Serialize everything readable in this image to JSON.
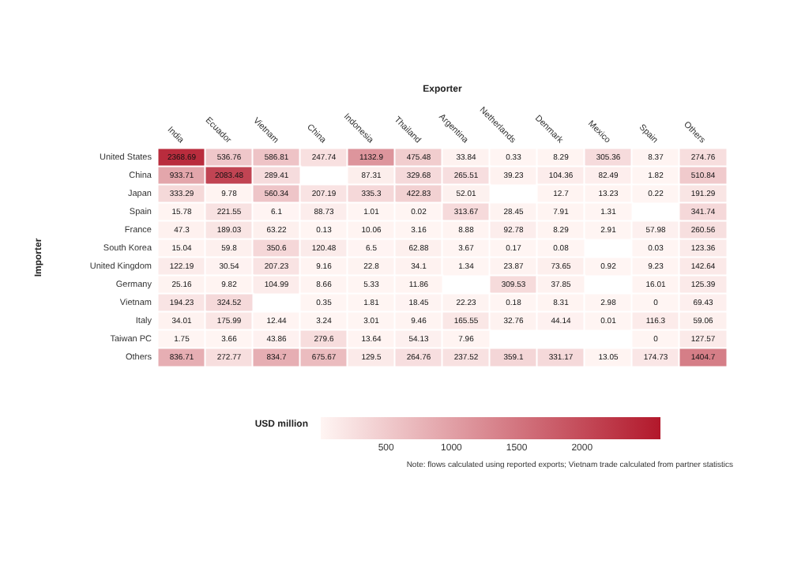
{
  "chart_data": {
    "type": "heatmap",
    "xlabel": "Exporter",
    "ylabel": "Importer",
    "clabel": "USD million",
    "categories": [
      "India",
      "Ecuador",
      "Vietnam",
      "China",
      "Indonesia",
      "Thailand",
      "Argentina",
      "Netherlands",
      "Denmark",
      "Mexico",
      "Spain",
      "Others"
    ],
    "y_categories": [
      "United States",
      "China",
      "Japan",
      "Spain",
      "France",
      "South Korea",
      "United Kingdom",
      "Germany",
      "Vietnam",
      "Italy",
      "Taiwan PC",
      "Others"
    ],
    "cells": [
      [
        2368.69,
        536.76,
        586.81,
        247.74,
        1132.9,
        475.48,
        33.84,
        0.33,
        8.29,
        305.36,
        8.37,
        274.76
      ],
      [
        933.71,
        2083.48,
        289.41,
        null,
        87.31,
        329.68,
        265.51,
        39.23,
        104.36,
        82.49,
        1.82,
        510.84
      ],
      [
        333.29,
        9.78,
        560.34,
        207.19,
        335.3,
        422.83,
        52.01,
        null,
        12.7,
        13.23,
        0.22,
        191.29
      ],
      [
        15.78,
        221.55,
        6.1,
        88.73,
        1.01,
        0.02,
        313.67,
        28.45,
        7.91,
        1.31,
        null,
        341.74
      ],
      [
        47.3,
        189.03,
        63.22,
        0.13,
        10.06,
        3.16,
        8.88,
        92.78,
        8.29,
        2.91,
        57.98,
        260.56
      ],
      [
        15.04,
        59.8,
        350.6,
        120.48,
        6.5,
        62.88,
        3.67,
        0.17,
        0.08,
        null,
        0.03,
        123.36
      ],
      [
        122.19,
        30.54,
        207.23,
        9.16,
        22.8,
        34.1,
        1.34,
        23.87,
        73.65,
        0.92,
        9.23,
        142.64
      ],
      [
        25.16,
        9.82,
        104.99,
        8.66,
        5.33,
        11.86,
        null,
        309.53,
        37.85,
        null,
        16.01,
        125.39
      ],
      [
        194.23,
        324.52,
        null,
        0.35,
        1.81,
        18.45,
        22.23,
        0.18,
        8.31,
        2.98,
        0,
        69.43
      ],
      [
        34.01,
        175.99,
        12.44,
        3.24,
        3.01,
        9.46,
        165.55,
        32.76,
        44.14,
        0.01,
        116.3,
        59.06
      ],
      [
        1.75,
        3.66,
        43.86,
        279.6,
        13.64,
        54.13,
        7.96,
        null,
        null,
        null,
        0,
        127.57
      ],
      [
        836.71,
        272.77,
        834.7,
        675.67,
        129.5,
        264.76,
        237.52,
        359.1,
        331.17,
        13.05,
        174.73,
        1404.7
      ]
    ],
    "clim": [
      0,
      2600
    ],
    "cticks": [
      500,
      1000,
      1500,
      2000
    ],
    "colors": [
      "#fff5f3",
      "#b2182b"
    ],
    "data_labels": true,
    "annotations": [
      "Note: flows calculated using reported exports; Vietnam trade calculated from partner statistics"
    ]
  }
}
